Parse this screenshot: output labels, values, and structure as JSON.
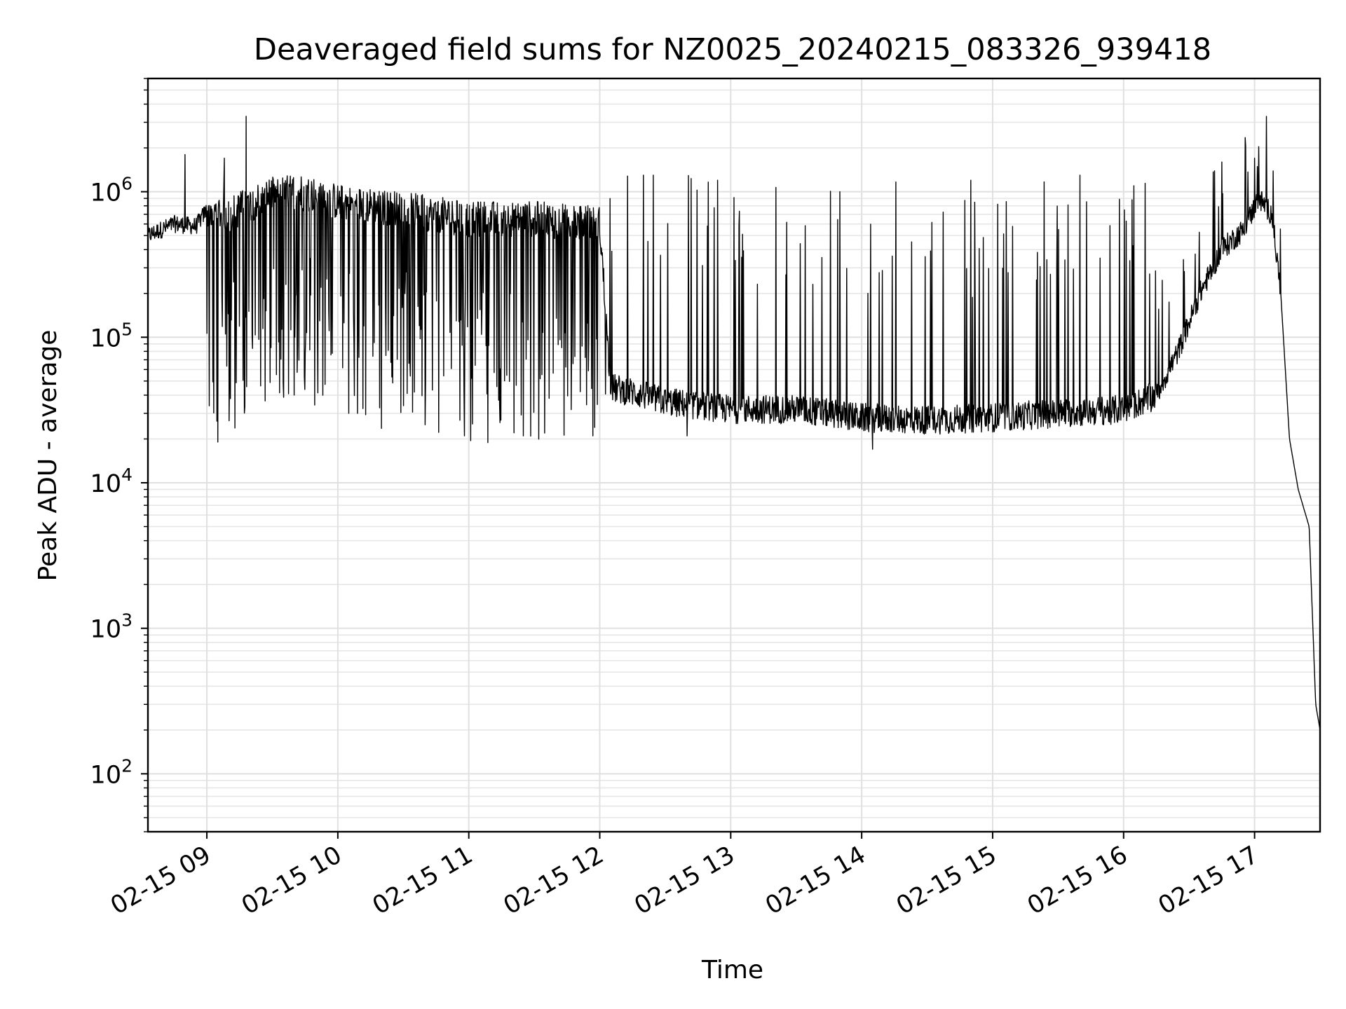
{
  "chart_data": {
    "type": "line",
    "title": "Deaveraged field sums for NZ0025_20240215_083326_939418",
    "xlabel": "Time",
    "ylabel": "Peak ADU - average",
    "y_scale": "log",
    "ylim": [
      40,
      6000000
    ],
    "xlim": [
      "2024-02-15 08:33",
      "2024-02-15 17:30"
    ],
    "grid": "major and minor",
    "x_ticks": [
      {
        "value": "2024-02-15 09:00",
        "label": "02-15 09"
      },
      {
        "value": "2024-02-15 10:00",
        "label": "02-15 10"
      },
      {
        "value": "2024-02-15 11:00",
        "label": "02-15 11"
      },
      {
        "value": "2024-02-15 12:00",
        "label": "02-15 12"
      },
      {
        "value": "2024-02-15 13:00",
        "label": "02-15 13"
      },
      {
        "value": "2024-02-15 14:00",
        "label": "02-15 14"
      },
      {
        "value": "2024-02-15 15:00",
        "label": "02-15 15"
      },
      {
        "value": "2024-02-15 16:00",
        "label": "02-15 16"
      },
      {
        "value": "2024-02-15 17:00",
        "label": "02-15 17"
      }
    ],
    "y_ticks": [
      {
        "value": 100,
        "base": "10",
        "exp": "2"
      },
      {
        "value": 1000,
        "base": "10",
        "exp": "3"
      },
      {
        "value": 10000,
        "base": "10",
        "exp": "4"
      },
      {
        "value": 100000,
        "base": "10",
        "exp": "5"
      },
      {
        "value": 1000000,
        "base": "10",
        "exp": "6"
      }
    ],
    "series": [
      {
        "color": "#000000",
        "x": [
          "2024-02-15 08:33",
          "2024-02-15 08:45",
          "2024-02-15 08:55",
          "2024-02-15 09:00",
          "2024-02-15 09:10",
          "2024-02-15 09:18",
          "2024-02-15 09:25",
          "2024-02-15 09:30",
          "2024-02-15 09:40",
          "2024-02-15 09:50",
          "2024-02-15 10:00",
          "2024-02-15 10:15",
          "2024-02-15 10:30",
          "2024-02-15 10:45",
          "2024-02-15 11:00",
          "2024-02-15 11:15",
          "2024-02-15 11:30",
          "2024-02-15 11:45",
          "2024-02-15 12:00",
          "2024-02-15 12:05",
          "2024-02-15 12:15",
          "2024-02-15 12:30",
          "2024-02-15 12:45",
          "2024-02-15 13:00",
          "2024-02-15 13:30",
          "2024-02-15 14:00",
          "2024-02-15 14:30",
          "2024-02-15 15:00",
          "2024-02-15 15:30",
          "2024-02-15 16:00",
          "2024-02-15 16:15",
          "2024-02-15 16:25",
          "2024-02-15 16:35",
          "2024-02-15 16:45",
          "2024-02-15 16:55",
          "2024-02-15 17:02",
          "2024-02-15 17:08",
          "2024-02-15 17:12",
          "2024-02-15 17:16",
          "2024-02-15 17:20",
          "2024-02-15 17:25",
          "2024-02-15 17:28",
          "2024-02-15 17:30"
        ],
        "y": [
          500000,
          600000,
          580000,
          750000,
          700000,
          800000,
          900000,
          950000,
          1000000,
          950000,
          850000,
          800000,
          750000,
          700000,
          650000,
          650000,
          650000,
          620000,
          600000,
          45000,
          42000,
          36000,
          34000,
          32000,
          32000,
          28000,
          27000,
          28000,
          30000,
          32000,
          40000,
          80000,
          200000,
          400000,
          550000,
          900000,
          700000,
          200000,
          20000,
          9000,
          5000,
          300,
          200
        ],
        "spikes": [
          {
            "x": "2024-02-15 08:50",
            "y": 1800000
          },
          {
            "x": "2024-02-15 09:08",
            "y": 1700000
          },
          {
            "x": "2024-02-15 09:18",
            "y": 3300000
          },
          {
            "x": "2024-02-15 12:20",
            "y": 1300000
          },
          {
            "x": "2024-02-15 12:54",
            "y": 1200000
          },
          {
            "x": "2024-02-15 13:50",
            "y": 1000000
          },
          {
            "x": "2024-02-15 14:50",
            "y": 1200000
          },
          {
            "x": "2024-02-15 15:40",
            "y": 1300000
          },
          {
            "x": "2024-02-15 16:45",
            "y": 1600000
          },
          {
            "x": "2024-02-15 17:00",
            "y": 1700000
          }
        ],
        "dips": [
          {
            "x": "2024-02-15 09:40",
            "y": 40000
          },
          {
            "x": "2024-02-15 10:05",
            "y": 30000
          },
          {
            "x": "2024-02-15 10:40",
            "y": 25000
          },
          {
            "x": "2024-02-15 10:58",
            "y": 21000
          },
          {
            "x": "2024-02-15 11:25",
            "y": 21000
          },
          {
            "x": "2024-02-15 12:40",
            "y": 21000
          },
          {
            "x": "2024-02-15 14:05",
            "y": 17000
          }
        ]
      }
    ]
  }
}
